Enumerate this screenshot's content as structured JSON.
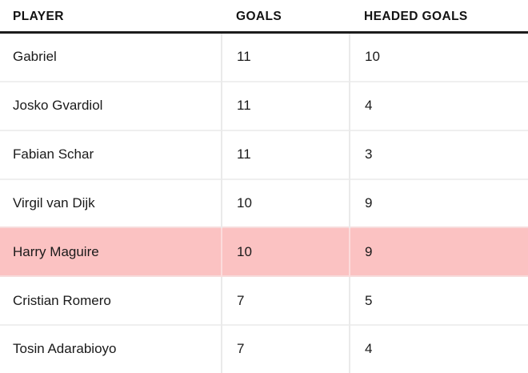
{
  "chart_data": {
    "type": "table",
    "columns": [
      "PLAYER",
      "GOALS",
      "HEADED GOALS"
    ],
    "rows": [
      {
        "player": "Gabriel",
        "goals": "11",
        "headed_goals": "10",
        "highlight": false
      },
      {
        "player": "Josko Gvardiol",
        "goals": "11",
        "headed_goals": "4",
        "highlight": false
      },
      {
        "player": "Fabian Schar",
        "goals": "11",
        "headed_goals": "3",
        "highlight": false
      },
      {
        "player": "Virgil van Dijk",
        "goals": "10",
        "headed_goals": "9",
        "highlight": false
      },
      {
        "player": "Harry Maguire",
        "goals": "10",
        "headed_goals": "9",
        "highlight": true
      },
      {
        "player": "Cristian Romero",
        "goals": "7",
        "headed_goals": "5",
        "highlight": false
      },
      {
        "player": "Tosin Adarabioyo",
        "goals": "7",
        "headed_goals": "4",
        "highlight": false
      }
    ],
    "layout_hints": {
      "highlighted_row": "Harry Maguire",
      "grid": "row and column dividers, heavy rule under header"
    }
  },
  "colors": {
    "highlight_pink": "#fbc2c2",
    "header_rule_black": "#1c1c1c",
    "row_divider_gray": "#efefef",
    "column_divider_gray": "#eaeaea",
    "text": "#1a1a1a",
    "background": "#ffffff"
  }
}
